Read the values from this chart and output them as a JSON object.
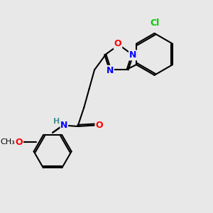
{
  "bg_color": "#e8e8e8",
  "bond_color": "#000000",
  "bond_lw": 1.5,
  "atom_colors": {
    "O": "#ff0000",
    "N": "#0000ff",
    "Cl": "#00cc00",
    "H": "#4a9090",
    "C": "#000000"
  },
  "font_size": 9,
  "font_size_small": 8
}
